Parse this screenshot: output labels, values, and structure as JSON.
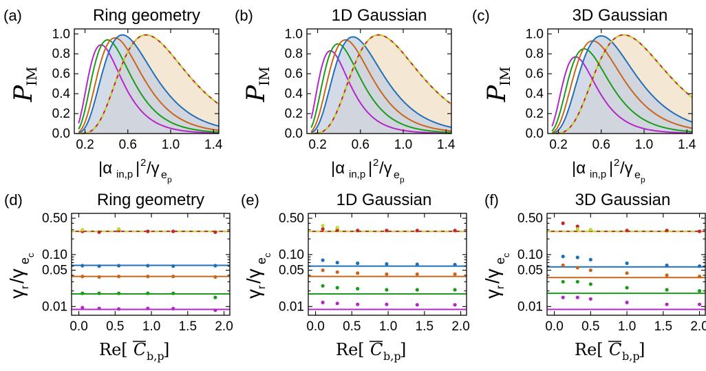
{
  "chart_data": [
    {
      "id": "a",
      "type": "area",
      "panel_label": "(a)",
      "title": "Ring geometry",
      "ylabel": "P_IM",
      "xlabel": "|α_in,p|²/γ_ep",
      "xlim": [
        0.1,
        1.45
      ],
      "ylim": [
        0,
        1.05
      ],
      "xticks": [
        0.2,
        0.6,
        1.0,
        1.4
      ],
      "xtick_labels": [
        "0.2",
        "0.6",
        "1.0",
        "1.4"
      ],
      "yticks": [
        0.0,
        0.2,
        0.4,
        0.6,
        0.8,
        1.0
      ],
      "ytick_labels": [
        "0.0",
        "0.2",
        "0.4",
        "0.6",
        "0.8",
        "1.0"
      ],
      "series": [
        {
          "name": "magenta",
          "color": "#b526c9",
          "peak_x": 0.35,
          "peak_y": 0.89,
          "width": 0.3,
          "filled": false,
          "dashed": false
        },
        {
          "name": "green",
          "color": "#1a9c1a",
          "peak_x": 0.41,
          "peak_y": 0.94,
          "width": 0.34,
          "filled": false,
          "dashed": false
        },
        {
          "name": "orange",
          "color": "#c9651a",
          "peak_x": 0.48,
          "peak_y": 0.96,
          "width": 0.38,
          "filled": false,
          "dashed": false
        },
        {
          "name": "blue",
          "color": "#1f6fb8",
          "peak_x": 0.55,
          "peak_y": 0.99,
          "width": 0.44,
          "filled": true,
          "fill": "#c6cfe0",
          "dashed": false
        },
        {
          "name": "red",
          "color": "#c4262b",
          "peak_x": 0.77,
          "peak_y": 0.99,
          "width": 0.56,
          "filled": true,
          "fill": "#f0dfc6",
          "dashed": false
        },
        {
          "name": "yellow-green dashed",
          "color": "#bedb30",
          "peak_x": 0.77,
          "peak_y": 0.99,
          "width": 0.56,
          "filled": false,
          "dashed": true
        }
      ]
    },
    {
      "id": "b",
      "type": "area",
      "panel_label": "(b)",
      "title": "1D Gaussian",
      "ylabel": "P_IM",
      "xlabel": "|α_in,p|²/γ_ep",
      "xlim": [
        0.1,
        1.45
      ],
      "ylim": [
        0,
        1.05
      ],
      "xticks": [
        0.2,
        0.6,
        1.0,
        1.4
      ],
      "xtick_labels": [
        "0.2",
        "0.6",
        "1.0",
        "1.4"
      ],
      "yticks": [
        0.0,
        0.2,
        0.4,
        0.6,
        0.8,
        1.0
      ],
      "ytick_labels": [
        "0.0",
        "0.2",
        "0.4",
        "0.6",
        "0.8",
        "1.0"
      ],
      "series": [
        {
          "name": "magenta",
          "color": "#b526c9",
          "peak_x": 0.32,
          "peak_y": 0.83,
          "width": 0.28,
          "filled": false,
          "dashed": false
        },
        {
          "name": "green",
          "color": "#1a9c1a",
          "peak_x": 0.39,
          "peak_y": 0.9,
          "width": 0.33,
          "filled": false,
          "dashed": false
        },
        {
          "name": "orange",
          "color": "#c9651a",
          "peak_x": 0.46,
          "peak_y": 0.94,
          "width": 0.37,
          "filled": false,
          "dashed": false
        },
        {
          "name": "blue",
          "color": "#1f6fb8",
          "peak_x": 0.53,
          "peak_y": 0.97,
          "width": 0.43,
          "filled": true,
          "fill": "#c6cfe0",
          "dashed": false
        },
        {
          "name": "red",
          "color": "#c4262b",
          "peak_x": 0.77,
          "peak_y": 0.99,
          "width": 0.56,
          "filled": true,
          "fill": "#f0dfc6",
          "dashed": false
        },
        {
          "name": "yellow-green dashed",
          "color": "#bedb30",
          "peak_x": 0.77,
          "peak_y": 0.99,
          "width": 0.56,
          "filled": false,
          "dashed": true
        }
      ]
    },
    {
      "id": "c",
      "type": "area",
      "panel_label": "(c)",
      "title": "3D Gaussian",
      "ylabel": "P_IM",
      "xlabel": "|α_in,p|²/γ_ep",
      "xlim": [
        0.1,
        1.45
      ],
      "ylim": [
        0,
        1.05
      ],
      "xticks": [
        0.2,
        0.6,
        1.0,
        1.4
      ],
      "xtick_labels": [
        "0.2",
        "0.6",
        "1.0",
        "1.4"
      ],
      "yticks": [
        0.0,
        0.2,
        0.4,
        0.6,
        0.8,
        1.0
      ],
      "ytick_labels": [
        "0.0",
        "0.2",
        "0.4",
        "0.6",
        "0.8",
        "1.0"
      ],
      "series": [
        {
          "name": "magenta",
          "color": "#b526c9",
          "peak_x": 0.36,
          "peak_y": 0.77,
          "width": 0.3,
          "filled": false,
          "dashed": false
        },
        {
          "name": "green",
          "color": "#1a9c1a",
          "peak_x": 0.44,
          "peak_y": 0.85,
          "width": 0.36,
          "filled": false,
          "dashed": false
        },
        {
          "name": "orange",
          "color": "#c9651a",
          "peak_x": 0.52,
          "peak_y": 0.93,
          "width": 0.42,
          "filled": false,
          "dashed": false
        },
        {
          "name": "blue",
          "color": "#1f6fb8",
          "peak_x": 0.6,
          "peak_y": 0.98,
          "width": 0.48,
          "filled": true,
          "fill": "#c6cfe0",
          "dashed": false
        },
        {
          "name": "red",
          "color": "#c4262b",
          "peak_x": 0.81,
          "peak_y": 0.99,
          "width": 0.6,
          "filled": true,
          "fill": "#f0dfc6",
          "dashed": false
        },
        {
          "name": "yellow-green dashed",
          "color": "#bedb30",
          "peak_x": 0.81,
          "peak_y": 0.99,
          "width": 0.6,
          "filled": false,
          "dashed": true
        }
      ]
    },
    {
      "id": "d",
      "type": "scatter",
      "panel_label": "(d)",
      "title": "Ring geometry",
      "ylabel": "γ_r/γ_ec",
      "xlabel": "Re[C̄_b,p]",
      "yscale": "log",
      "xlim": [
        -0.1,
        2.08
      ],
      "ylim": [
        0.0068,
        0.62
      ],
      "xticks": [
        0.0,
        0.5,
        1.0,
        1.5,
        2.0
      ],
      "xtick_labels": [
        "0.0",
        "0.5",
        "1.0",
        "1.5",
        "2.0"
      ],
      "yticks": [
        0.01,
        0.05,
        0.1,
        0.5
      ],
      "ytick_labels": [
        "0.01",
        "0.05",
        "0.10",
        "0.50"
      ],
      "lines": [
        {
          "name": "red",
          "color": "#c4262b",
          "y": 0.28,
          "dashed": false
        },
        {
          "name": "yellow-green dashed",
          "color": "#bedb30",
          "y": 0.28,
          "dashed": true
        },
        {
          "name": "blue",
          "color": "#1f6fb8",
          "y": 0.062,
          "dashed": false
        },
        {
          "name": "orange",
          "color": "#c9651a",
          "y": 0.038,
          "dashed": false
        },
        {
          "name": "green",
          "color": "#1a9c1a",
          "y": 0.0175,
          "dashed": false
        },
        {
          "name": "magenta",
          "color": "#b526c9",
          "y": 0.0088,
          "dashed": false
        }
      ],
      "points": [
        {
          "name": "red",
          "color": "#c4262b",
          "x": [
            0.05,
            0.28,
            0.55,
            0.95,
            1.3,
            1.88
          ],
          "y": [
            0.28,
            0.27,
            0.29,
            0.28,
            0.28,
            0.27
          ]
        },
        {
          "name": "yellow",
          "color": "#bedb30",
          "x": [
            0.05,
            0.55
          ],
          "y": [
            0.3,
            0.31
          ]
        },
        {
          "name": "blue",
          "color": "#1f6fb8",
          "x": [
            0.05,
            0.28,
            0.55,
            0.95,
            1.3,
            1.88
          ],
          "y": [
            0.061,
            0.06,
            0.061,
            0.061,
            0.06,
            0.061
          ]
        },
        {
          "name": "orange",
          "color": "#c9651a",
          "x": [
            0.05,
            0.28,
            0.55,
            0.95,
            1.3,
            1.88
          ],
          "y": [
            0.038,
            0.037,
            0.038,
            0.038,
            0.038,
            0.037
          ]
        },
        {
          "name": "green",
          "color": "#1a9c1a",
          "x": [
            0.05,
            0.28,
            0.55,
            0.95,
            1.3,
            1.88
          ],
          "y": [
            0.018,
            0.018,
            0.018,
            0.018,
            0.018,
            0.015
          ]
        },
        {
          "name": "magenta",
          "color": "#b526c9",
          "x": [
            0.05,
            0.28,
            0.55,
            0.95,
            1.3,
            1.88
          ],
          "y": [
            0.0095,
            0.0092,
            0.009,
            0.0092,
            0.0091,
            0.0085
          ]
        }
      ]
    },
    {
      "id": "e",
      "type": "scatter",
      "panel_label": "(e)",
      "title": "1D Gaussian",
      "ylabel": "γ_r/γ_ec",
      "xlabel": "Re[C̄_b,p]",
      "yscale": "log",
      "xlim": [
        -0.1,
        2.08
      ],
      "ylim": [
        0.0068,
        0.62
      ],
      "xticks": [
        0.0,
        0.5,
        1.0,
        1.5,
        2.0
      ],
      "xtick_labels": [
        "0.0",
        "0.5",
        "1.0",
        "1.5",
        "2.0"
      ],
      "yticks": [
        0.01,
        0.05,
        0.1,
        0.5
      ],
      "ytick_labels": [
        "0.01",
        "0.05",
        "0.10",
        "0.50"
      ],
      "lines": [
        {
          "name": "red",
          "color": "#c4262b",
          "y": 0.28,
          "dashed": false
        },
        {
          "name": "yellow-green dashed",
          "color": "#bedb30",
          "y": 0.28,
          "dashed": true
        },
        {
          "name": "blue",
          "color": "#1f6fb8",
          "y": 0.06,
          "dashed": false
        },
        {
          "name": "orange",
          "color": "#c9651a",
          "y": 0.038,
          "dashed": false
        },
        {
          "name": "green",
          "color": "#1a9c1a",
          "y": 0.0175,
          "dashed": false
        },
        {
          "name": "magenta",
          "color": "#b526c9",
          "y": 0.0088,
          "dashed": false
        }
      ],
      "points": [
        {
          "name": "red",
          "color": "#c4262b",
          "x": [
            0.1,
            0.3,
            0.58,
            0.98,
            1.4,
            1.92
          ],
          "y": [
            0.31,
            0.3,
            0.29,
            0.29,
            0.29,
            0.29
          ]
        },
        {
          "name": "yellow",
          "color": "#bedb30",
          "x": [
            0.1,
            0.3
          ],
          "y": [
            0.36,
            0.33
          ]
        },
        {
          "name": "blue",
          "color": "#1f6fb8",
          "x": [
            0.1,
            0.3,
            0.58,
            0.98,
            1.4,
            1.92
          ],
          "y": [
            0.078,
            0.07,
            0.068,
            0.066,
            0.065,
            0.064
          ]
        },
        {
          "name": "orange",
          "color": "#c9651a",
          "x": [
            0.1,
            0.3,
            0.58,
            0.98,
            1.4,
            1.92
          ],
          "y": [
            0.05,
            0.046,
            0.044,
            0.042,
            0.042,
            0.042
          ]
        },
        {
          "name": "green",
          "color": "#1a9c1a",
          "x": [
            0.1,
            0.3,
            0.58,
            0.98,
            1.4,
            1.92
          ],
          "y": [
            0.025,
            0.023,
            0.022,
            0.021,
            0.021,
            0.021
          ]
        },
        {
          "name": "magenta",
          "color": "#b526c9",
          "x": [
            0.1,
            0.3,
            0.58,
            0.98,
            1.4,
            1.92
          ],
          "y": [
            0.012,
            0.0115,
            0.011,
            0.011,
            0.0108,
            0.0108
          ]
        }
      ]
    },
    {
      "id": "f",
      "type": "scatter",
      "panel_label": "(f)",
      "title": "3D Gaussian",
      "ylabel": "γ_r/γ_ec",
      "xlabel": "Re[C̄_b,p]",
      "yscale": "log",
      "xlim": [
        -0.1,
        2.08
      ],
      "ylim": [
        0.0068,
        0.62
      ],
      "xticks": [
        0.0,
        0.5,
        1.0,
        1.5,
        2.0
      ],
      "xtick_labels": [
        "0.0",
        "0.5",
        "1.0",
        "1.5",
        "2.0"
      ],
      "yticks": [
        0.01,
        0.05,
        0.1,
        0.5
      ],
      "ytick_labels": [
        "0.01",
        "0.05",
        "0.10",
        "0.50"
      ],
      "lines": [
        {
          "name": "red",
          "color": "#c4262b",
          "y": 0.28,
          "dashed": false
        },
        {
          "name": "yellow-green dashed",
          "color": "#bedb30",
          "y": 0.28,
          "dashed": true
        },
        {
          "name": "blue",
          "color": "#1f6fb8",
          "y": 0.058,
          "dashed": false
        },
        {
          "name": "orange",
          "color": "#c9651a",
          "y": 0.036,
          "dashed": false
        },
        {
          "name": "green",
          "color": "#1a9c1a",
          "y": 0.018,
          "dashed": false
        },
        {
          "name": "magenta",
          "color": "#b526c9",
          "y": 0.0088,
          "dashed": false
        }
      ],
      "points": [
        {
          "name": "red",
          "color": "#c4262b",
          "x": [
            0.12,
            0.32,
            0.5,
            1.0,
            1.55,
            2.0
          ],
          "y": [
            0.4,
            0.35,
            0.3,
            0.29,
            0.29,
            0.28
          ]
        },
        {
          "name": "yellow",
          "color": "#bedb30",
          "x": [
            0.32,
            0.5
          ],
          "y": [
            0.31,
            0.3
          ]
        },
        {
          "name": "blue",
          "color": "#1f6fb8",
          "x": [
            0.12,
            0.32,
            0.5,
            1.0,
            1.55,
            2.0
          ],
          "y": [
            0.092,
            0.088,
            0.08,
            0.068,
            0.062,
            0.06
          ]
        },
        {
          "name": "orange",
          "color": "#c9651a",
          "x": [
            0.12,
            0.32,
            0.5,
            1.0,
            1.55,
            2.0
          ],
          "y": [
            0.062,
            0.056,
            0.05,
            0.044,
            0.04,
            0.038
          ]
        },
        {
          "name": "green",
          "color": "#1a9c1a",
          "x": [
            0.12,
            0.32,
            0.5,
            1.0,
            1.55,
            2.0
          ],
          "y": [
            0.03,
            0.03,
            0.027,
            0.023,
            0.021,
            0.02
          ]
        },
        {
          "name": "magenta",
          "color": "#b526c9",
          "x": [
            0.12,
            0.32,
            0.5,
            1.0,
            1.55,
            2.0
          ],
          "y": [
            0.015,
            0.015,
            0.014,
            0.012,
            0.011,
            0.011
          ]
        }
      ]
    }
  ]
}
